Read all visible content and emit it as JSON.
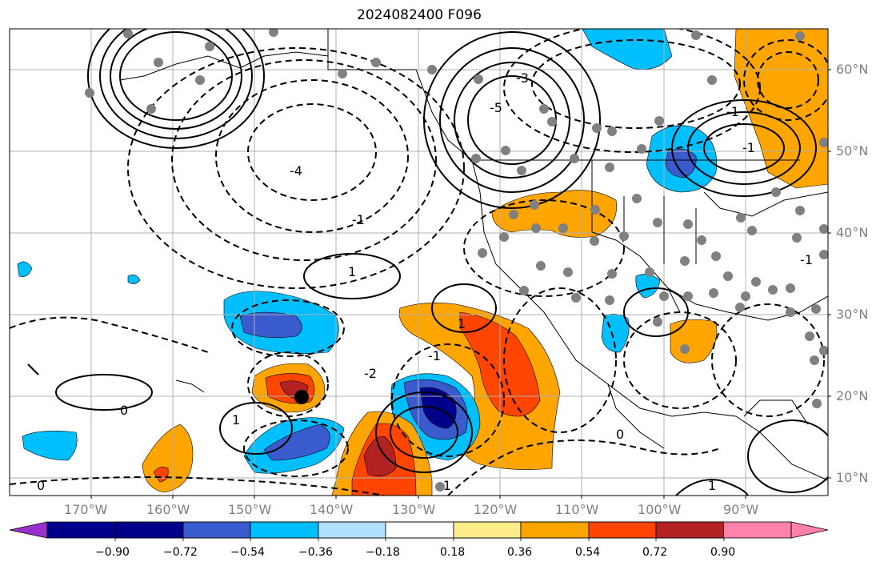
{
  "title": "2024082400 F096",
  "lon_labels": [
    "170°W",
    "160°W",
    "150°W",
    "140°W",
    "130°W",
    "120°W",
    "110°W",
    "100°W",
    "90°W"
  ],
  "lat_labels": [
    "60°N",
    "50°N",
    "40°N",
    "30°N",
    "20°N",
    "10°N"
  ],
  "colorbar": {
    "ticks": [
      "−0.90",
      "−0.72",
      "−0.54",
      "−0.36",
      "−0.18",
      "0.18",
      "0.36",
      "0.54",
      "0.72",
      "0.90"
    ],
    "colors": [
      "#9932cc",
      "#00008b",
      "#3a5bcd",
      "#00bfff",
      "#b0e2ff",
      "#ffffff",
      "#ffec8b",
      "#ffa500",
      "#ff4500",
      "#b22222",
      "#ff82ab"
    ]
  },
  "contour_labels": [
    "-4",
    "-1",
    "1",
    "-1",
    "-2",
    "1",
    "-5",
    "-3",
    "-1",
    "0",
    "1",
    "0",
    "-1",
    "-1",
    "1",
    "0",
    "-1"
  ],
  "colors": {
    "axis_text": "#7f7f7f",
    "grid": "#b0b0b0",
    "coast": "#000000",
    "station": "#808080"
  }
}
